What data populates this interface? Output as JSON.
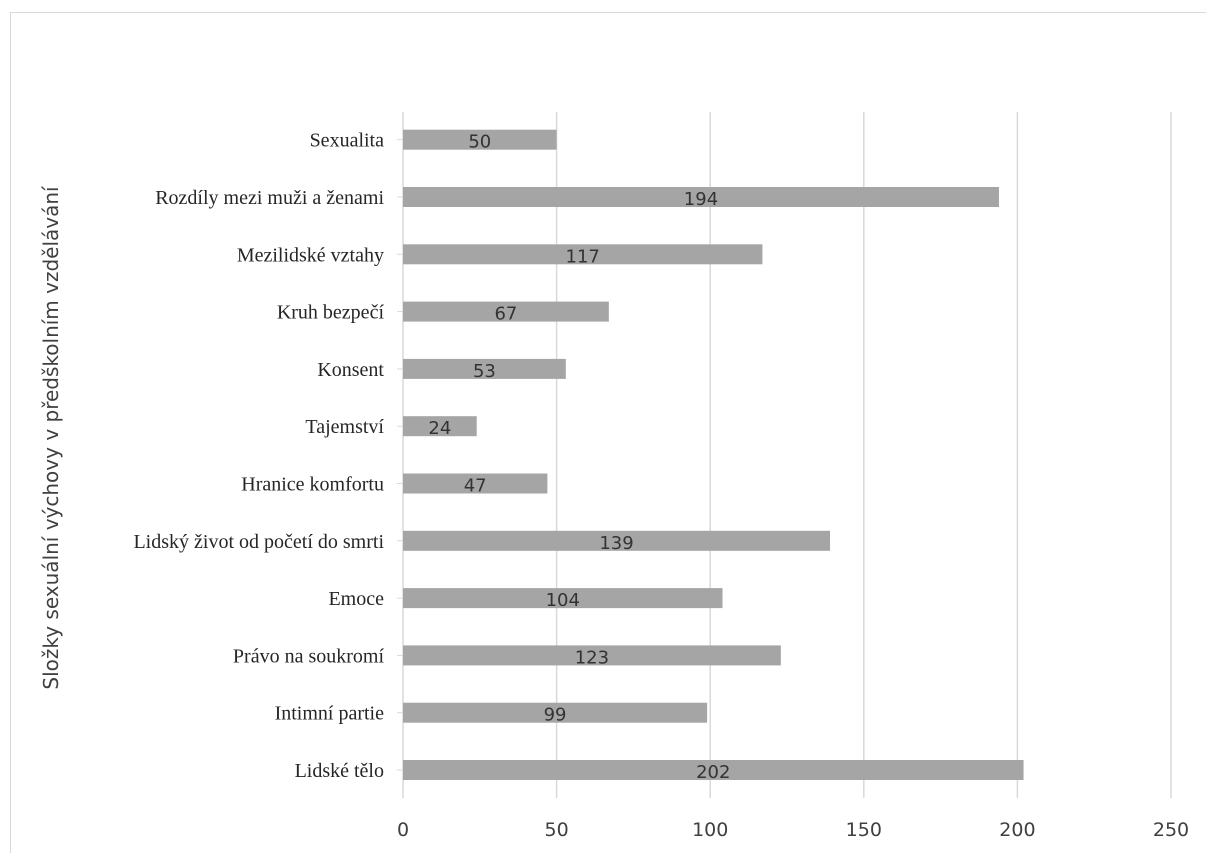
{
  "chart_data": {
    "type": "bar",
    "orientation": "horizontal",
    "categories": [
      "Lidské tělo",
      "Intimní partie",
      "Právo na soukromí",
      "Emoce",
      "Lidský život od početí do smrti",
      "Hranice komfortu",
      "Tajemství",
      "Konsent",
      "Kruh bezpečí",
      "Mezilidské vztahy",
      "Rozdíly mezi muži a ženami",
      "Sexualita"
    ],
    "values": [
      202,
      99,
      123,
      104,
      139,
      47,
      24,
      53,
      67,
      117,
      194,
      50
    ],
    "title": "",
    "xlabel": "",
    "ylabel": "Složky sexuální výchovy v předškolním vzdělávání",
    "xlim": [
      0,
      250
    ],
    "xticks": [
      "0",
      "50",
      "100",
      "150",
      "200",
      "250"
    ],
    "grid": true,
    "data_labels": true,
    "colors": {
      "bar": "#a5a5a5",
      "grid": "#d9d9d9",
      "frame": "#d9d9d9"
    }
  }
}
